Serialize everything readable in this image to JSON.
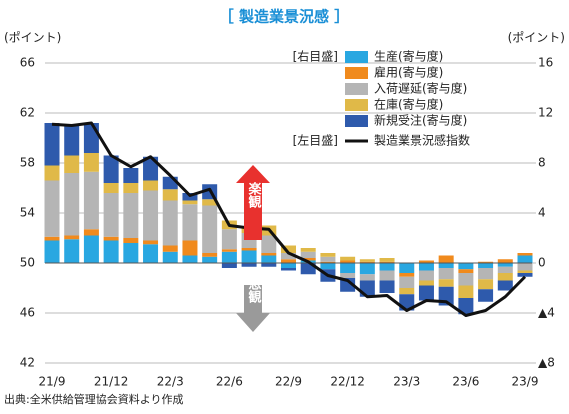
{
  "chart_data": {
    "type": "bar",
    "title": "［ 製造業景況感 ］",
    "y_label": "(ポイント)",
    "y2_label": "(ポイント)",
    "annotations": {
      "right_scale": "[右目盛]",
      "left_scale": "[左目盛]",
      "optimism": "楽観",
      "pessimism": "悲観",
      "source": "出典:全米供給管理協会資料より作成"
    },
    "categories": [
      "21/9",
      null,
      null,
      "21/12",
      null,
      null,
      "22/3",
      null,
      null,
      "22/6",
      null,
      null,
      "22/9",
      null,
      null,
      "22/12",
      null,
      null,
      "23/3",
      null,
      null,
      "23/6",
      null,
      null,
      "23/9"
    ],
    "ylim": [
      42,
      66
    ],
    "yticks": [
      42,
      46,
      50,
      54,
      58,
      62,
      66
    ],
    "y2lim": [
      -8,
      16
    ],
    "y2ticks": [
      {
        "value": -8,
        "label": "▲8"
      },
      {
        "value": -4,
        "label": "▲4"
      },
      0,
      4,
      8,
      12,
      16
    ],
    "grid": true,
    "series": [
      {
        "name": "生産(寄与度)",
        "color": "#29a7e1",
        "axis": "y2",
        "values": [
          1.8,
          1.9,
          2.2,
          1.8,
          1.6,
          1.5,
          0.9,
          0.6,
          0.5,
          0.9,
          1.0,
          0.6,
          -0.4,
          0.2,
          -0.5,
          -0.8,
          -0.9,
          -0.6,
          -0.8,
          -0.6,
          -0.4,
          -0.5,
          -0.4,
          -0.3,
          0.6
        ]
      },
      {
        "name": "雇用(寄与度)",
        "color": "#f08a1d",
        "axis": "y2",
        "values": [
          0.3,
          0.3,
          0.5,
          0.3,
          0.4,
          0.3,
          0.5,
          1.2,
          0.3,
          0.2,
          0.2,
          0.2,
          0.3,
          0.2,
          0.1,
          0.2,
          0.1,
          0.1,
          -0.3,
          0.2,
          0.6,
          -0.3,
          0.1,
          0.3,
          0.2
        ]
      },
      {
        "name": "入荷遅延(寄与度)",
        "color": "#b5b5b5",
        "axis": "y2",
        "values": [
          4.5,
          5.0,
          4.6,
          3.5,
          3.6,
          4.0,
          3.6,
          2.9,
          3.8,
          1.6,
          1.2,
          1.4,
          0.5,
          0.5,
          0.4,
          -0.4,
          -0.5,
          -0.8,
          -0.9,
          -0.8,
          -0.9,
          -1.0,
          -0.9,
          -0.5,
          -0.6
        ]
      },
      {
        "name": "在庫(寄与度)",
        "color": "#e0b948",
        "axis": "y2",
        "values": [
          1.2,
          1.4,
          1.5,
          0.8,
          0.8,
          0.8,
          0.9,
          0.3,
          0.5,
          0.7,
          0.5,
          0.8,
          0.6,
          0.3,
          0.3,
          0.3,
          0.2,
          0.3,
          -0.5,
          -0.4,
          -0.6,
          -1.0,
          -0.8,
          -0.6,
          -0.2
        ]
      },
      {
        "name": "新規受注(寄与度)",
        "color": "#2e5aac",
        "axis": "y2",
        "values": [
          3.4,
          2.4,
          2.4,
          2.2,
          1.2,
          1.9,
          1.0,
          0.6,
          1.2,
          -0.4,
          -0.3,
          -0.3,
          -0.2,
          -0.9,
          -1.0,
          -1.1,
          -1.3,
          -1.0,
          -1.3,
          -1.2,
          -1.5,
          -1.3,
          -1.0,
          -0.8,
          -0.3
        ]
      },
      {
        "name": "製造業景況感指数",
        "color": "#111111",
        "axis": "y",
        "type": "line",
        "values": [
          61.1,
          61.0,
          61.2,
          58.6,
          57.7,
          58.5,
          57.0,
          55.4,
          55.9,
          53.0,
          52.8,
          52.7,
          50.8,
          50.1,
          49.0,
          48.6,
          47.3,
          47.4,
          46.2,
          47.0,
          46.9,
          45.8,
          46.2,
          47.3,
          48.9
        ]
      }
    ]
  }
}
